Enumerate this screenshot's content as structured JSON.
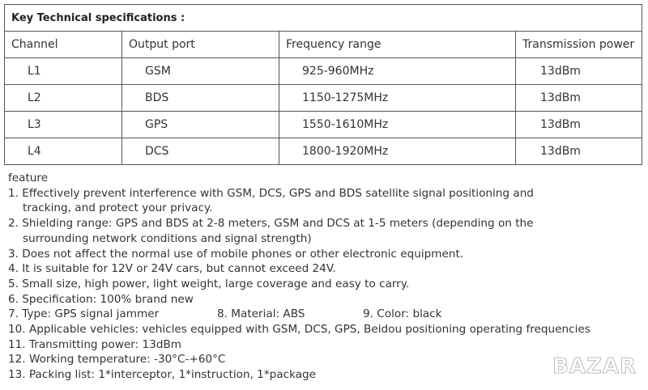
{
  "spec": {
    "title": "Key Technical specifications :",
    "headers": [
      "Channel",
      "Output port",
      "Frequency range",
      "Transmission power"
    ],
    "rows": [
      [
        "L1",
        "GSM",
        "925-960MHz",
        "13dBm"
      ],
      [
        "L2",
        "BDS",
        "1150-1275MHz",
        "13dBm"
      ],
      [
        "L3",
        "GPS",
        "1550-1610MHz",
        "13dBm"
      ],
      [
        "L4",
        "DCS",
        "1800-1920MHz",
        "13dBm"
      ]
    ]
  },
  "features": {
    "heading": "feature",
    "l1a": "1. Effectively prevent interference with GSM, DCS, GPS and BDS satellite signal positioning and",
    "l1b": "tracking, and protect your privacy.",
    "l2a": "2. Shielding range: GPS and BDS at 2-8 meters, GSM and DCS at 1-5 meters (depending on the",
    "l2b": "surrounding network conditions and signal strength)",
    "l3": "3. Does not affect the normal use of mobile phones or other electronic equipment.",
    "l4": "4. It is suitable for 12V or 24V cars, but cannot exceed 24V.",
    "l5": "5. Small size, high power, light weight, large coverage and easy to carry.",
    "l6": "6. Specification: 100% brand new",
    "l7": "7. Type: GPS signal jammer",
    "l8": "8. Material: ABS",
    "l9": "9. Color: black",
    "l10": "10. Applicable vehicles: vehicles equipped with GSM, DCS, GPS, Beidou positioning operating frequencies",
    "l11": "11. Transmitting power: 13dBm",
    "l12": "12. Working temperature: -30°C-+60°C",
    "l13": "13. Packing list: 1*interceptor, 1*instruction, 1*package"
  },
  "watermark": "BAZAR"
}
